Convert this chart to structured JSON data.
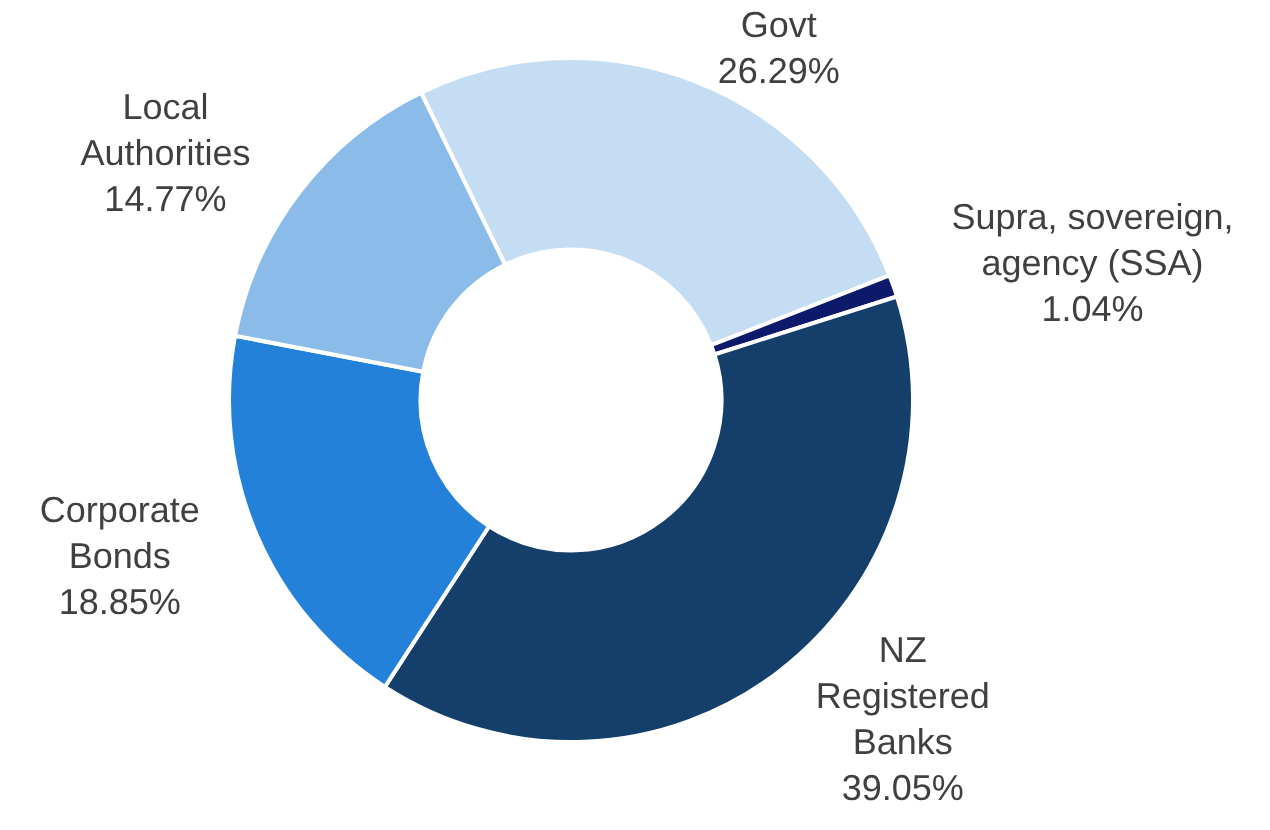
{
  "chart_data": {
    "type": "donut",
    "categories": [
      "Govt",
      "Supra, sovereign,\nagency (SSA)",
      "NZ\nRegistered\nBanks",
      "Corporate\nBonds",
      "Local\nAuthorities"
    ],
    "values": [
      26.29,
      1.04,
      39.05,
      18.85,
      14.77
    ],
    "colors": [
      "#c5ddf3",
      "#0d1a6b",
      "#143f6b",
      "#2481d9",
      "#8abbe9"
    ],
    "value_labels": [
      "26.29%",
      "1.04%",
      "39.05%",
      "18.85%",
      "14.77%"
    ],
    "legend": false
  }
}
